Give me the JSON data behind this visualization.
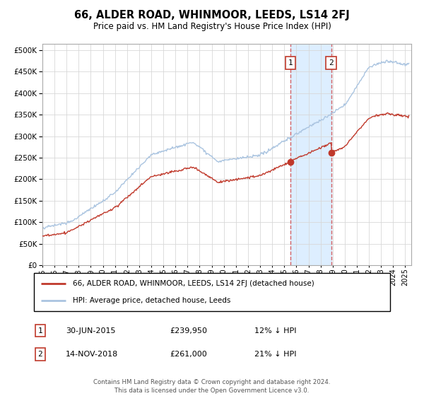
{
  "title": "66, ALDER ROAD, WHINMOOR, LEEDS, LS14 2FJ",
  "subtitle": "Price paid vs. HM Land Registry's House Price Index (HPI)",
  "yticks": [
    0,
    50000,
    100000,
    150000,
    200000,
    250000,
    300000,
    350000,
    400000,
    450000,
    500000
  ],
  "ylim": [
    0,
    515000
  ],
  "xlim_start": 1995.0,
  "xlim_end": 2025.5,
  "purchase1_date": 2015.5,
  "purchase1_price": 239950,
  "purchase1_label": "1",
  "purchase2_date": 2018.87,
  "purchase2_price": 261000,
  "purchase2_label": "2",
  "hpi_color": "#aac4e0",
  "price_color": "#c0392b",
  "shaded_color": "#ddeeff",
  "legend_label1": "66, ALDER ROAD, WHINMOOR, LEEDS, LS14 2FJ (detached house)",
  "legend_label2": "HPI: Average price, detached house, Leeds",
  "annotation1_date": "30-JUN-2015",
  "annotation1_price": "£239,950",
  "annotation1_pct": "12% ↓ HPI",
  "annotation2_date": "14-NOV-2018",
  "annotation2_price": "£261,000",
  "annotation2_pct": "21% ↓ HPI",
  "footer": "Contains HM Land Registry data © Crown copyright and database right 2024.\nThis data is licensed under the Open Government Licence v3.0."
}
